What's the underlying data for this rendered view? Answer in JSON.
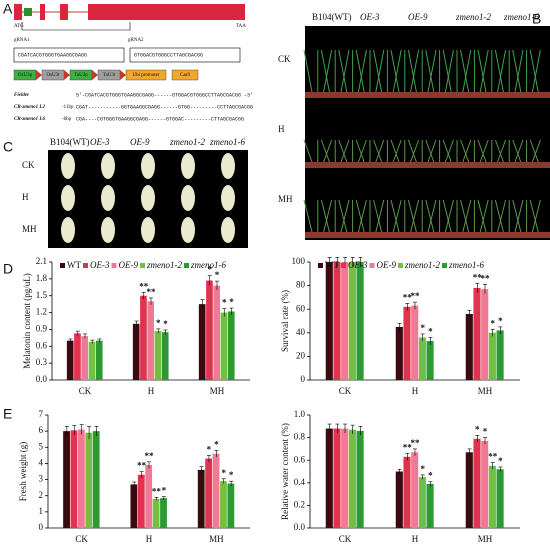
{
  "panel_labels": [
    "A",
    "B",
    "C",
    "D",
    "E"
  ],
  "panel_a": {
    "start": "ATG",
    "stop": "TAA",
    "grna_labels": [
      "gRNA1",
      "gRNA2"
    ],
    "grna_sequences": [
      "CGATCACGTGGGTGAAGGCGAGG",
      "GTGGACGTGGGCCTTAGCGACGG"
    ],
    "construct": [
      "OsU3p",
      "OsU3t",
      "TaU3p",
      "TaU3t",
      "Ubi promoter",
      "Cas9"
    ],
    "alignment": [
      {
        "name": "Fielder",
        "sequence": "5'-CGATCACGTGGGTGAAGGCGAGG------GTGGACGTGGGCCTTAGCGACGG -3'"
      },
      {
        "name": "CR-zmeno1 L2",
        "deletion": "-11bp",
        "sequence": "CGAT-----------GGTGAAGGCGAGG------GTGG---------CCTTAGCGACGG"
      },
      {
        "name": "CR-zmeno1 L6",
        "deletion": "-8bp",
        "sequence": "CGA----CGTGGGTGAAGGCGAGG------GTGGAC---------CTTAGCGACGG"
      }
    ]
  },
  "panel_b": {
    "genotypes": [
      "B104(WT)",
      "OE-3",
      "OE-9",
      "zmeno1-2",
      "zmeno1-6"
    ],
    "treatments": [
      "CK",
      "H",
      "MH"
    ]
  },
  "panel_c": {
    "genotypes": [
      "B104(WT)",
      "OE-3",
      "OE-9",
      "zmeno1-2",
      "zmeno1-6"
    ],
    "treatments": [
      "CK",
      "H",
      "MH"
    ]
  },
  "chart_data": [
    {
      "type": "bar",
      "ylabel": "Melatonin content (pg/uL)",
      "categories": [
        "CK",
        "H",
        "MH"
      ],
      "ylim": [
        0,
        2.1
      ],
      "yticks": [
        {
          "value": 0,
          "label": "0.0"
        },
        0.3,
        0.6,
        0.9,
        1.2,
        1.5,
        1.8,
        2.1
      ],
      "legend": "top",
      "series": [
        {
          "name": "WT",
          "color": "#3a0a0e",
          "values": [
            0.7,
            1.0,
            1.35
          ],
          "errors": [
            0.03,
            0.05,
            0.08
          ],
          "significance": [
            null,
            null,
            null
          ]
        },
        {
          "name": "OE-3",
          "color": "#e0334f",
          "values": [
            0.83,
            1.5,
            1.77
          ],
          "errors": [
            0.04,
            0.06,
            0.09
          ],
          "significance": [
            null,
            "**",
            "*"
          ]
        },
        {
          "name": "OE-9",
          "color": "#f07a95",
          "values": [
            0.78,
            1.4,
            1.68
          ],
          "errors": [
            0.04,
            0.06,
            0.08
          ],
          "significance": [
            null,
            "**",
            "*"
          ]
        },
        {
          "name": "zmeno1-2",
          "color": "#72c043",
          "values": [
            0.68,
            0.87,
            1.2
          ],
          "errors": [
            0.03,
            0.04,
            0.07
          ],
          "significance": [
            null,
            "*",
            "*"
          ]
        },
        {
          "name": "zmeno1-6",
          "color": "#2b9a30",
          "values": [
            0.7,
            0.85,
            1.22
          ],
          "errors": [
            0.03,
            0.04,
            0.06
          ],
          "significance": [
            null,
            "*",
            "*"
          ]
        }
      ]
    },
    {
      "type": "bar",
      "ylabel": "Survival rate (%)",
      "categories": [
        "CK",
        "H",
        "MH"
      ],
      "ylim": [
        0,
        100
      ],
      "yticks": [
        0,
        20,
        40,
        60,
        80,
        100
      ],
      "legend": "top",
      "series": [
        {
          "name": "WT",
          "color": "#3a0a0e",
          "values": [
            100,
            45,
            56
          ],
          "errors": [
            4,
            3,
            3
          ],
          "significance": [
            null,
            null,
            null
          ]
        },
        {
          "name": "OE-3",
          "color": "#e0334f",
          "values": [
            100,
            62,
            78
          ],
          "errors": [
            4,
            3,
            4
          ],
          "significance": [
            null,
            "**",
            "**"
          ]
        },
        {
          "name": "OE-9",
          "color": "#f07a95",
          "values": [
            100,
            63,
            77
          ],
          "errors": [
            4,
            3,
            4
          ],
          "significance": [
            null,
            "**",
            "**"
          ]
        },
        {
          "name": "zmeno1-2",
          "color": "#72c043",
          "values": [
            100,
            36,
            40
          ],
          "errors": [
            4,
            3,
            3
          ],
          "significance": [
            null,
            "*",
            "*"
          ]
        },
        {
          "name": "zmeno1-6",
          "color": "#2b9a30",
          "values": [
            100,
            33,
            42
          ],
          "errors": [
            4,
            3,
            3
          ],
          "significance": [
            null,
            "*",
            "*"
          ]
        }
      ]
    },
    {
      "type": "bar",
      "ylabel": "Fresh weight (g)",
      "categories": [
        "CK",
        "H",
        "MH"
      ],
      "ylim": [
        0,
        7
      ],
      "yticks": [
        0,
        1,
        2,
        3,
        4,
        5,
        6,
        7
      ],
      "series": [
        {
          "color": "#3a0a0e",
          "values": [
            6.0,
            2.7,
            3.6
          ],
          "errors": [
            0.3,
            0.15,
            0.2
          ],
          "significance": [
            null,
            null,
            null
          ]
        },
        {
          "color": "#e0334f",
          "values": [
            6.05,
            3.3,
            4.3
          ],
          "errors": [
            0.3,
            0.2,
            0.2
          ],
          "significance": [
            null,
            "**",
            "*"
          ]
        },
        {
          "color": "#f07a95",
          "values": [
            6.1,
            3.9,
            4.6
          ],
          "errors": [
            0.3,
            0.2,
            0.2
          ],
          "significance": [
            null,
            "**",
            "*"
          ]
        },
        {
          "color": "#72c043",
          "values": [
            5.9,
            1.8,
            2.9
          ],
          "errors": [
            0.4,
            0.1,
            0.15
          ],
          "significance": [
            null,
            "**",
            "*"
          ]
        },
        {
          "color": "#2b9a30",
          "values": [
            6.0,
            1.85,
            2.75
          ],
          "errors": [
            0.3,
            0.1,
            0.15
          ],
          "significance": [
            null,
            "*",
            "*"
          ]
        }
      ]
    },
    {
      "type": "bar",
      "ylabel": "Relative water content (%)",
      "categories": [
        "CK",
        "H",
        "MH"
      ],
      "ylim": [
        0,
        1
      ],
      "yticks": [
        {
          "value": 0,
          "label": "0.0"
        },
        0.2,
        0.4,
        0.6,
        0.8,
        {
          "value": 1,
          "label": "1.0"
        }
      ],
      "series": [
        {
          "color": "#3a0a0e",
          "values": [
            0.88,
            0.5,
            0.67
          ],
          "errors": [
            0.04,
            0.02,
            0.03
          ],
          "significance": [
            null,
            null,
            null
          ]
        },
        {
          "color": "#e0334f",
          "values": [
            0.88,
            0.63,
            0.79
          ],
          "errors": [
            0.04,
            0.03,
            0.03
          ],
          "significance": [
            null,
            "**",
            "*"
          ]
        },
        {
          "color": "#f07a95",
          "values": [
            0.88,
            0.67,
            0.77
          ],
          "errors": [
            0.04,
            0.03,
            0.03
          ],
          "significance": [
            null,
            "**",
            "*"
          ]
        },
        {
          "color": "#72c043",
          "values": [
            0.87,
            0.45,
            0.55
          ],
          "errors": [
            0.04,
            0.02,
            0.03
          ],
          "significance": [
            null,
            "*",
            "**"
          ]
        },
        {
          "color": "#2b9a30",
          "values": [
            0.86,
            0.39,
            0.52
          ],
          "errors": [
            0.04,
            0.02,
            0.02
          ],
          "significance": [
            null,
            "*",
            "*"
          ]
        }
      ]
    }
  ]
}
